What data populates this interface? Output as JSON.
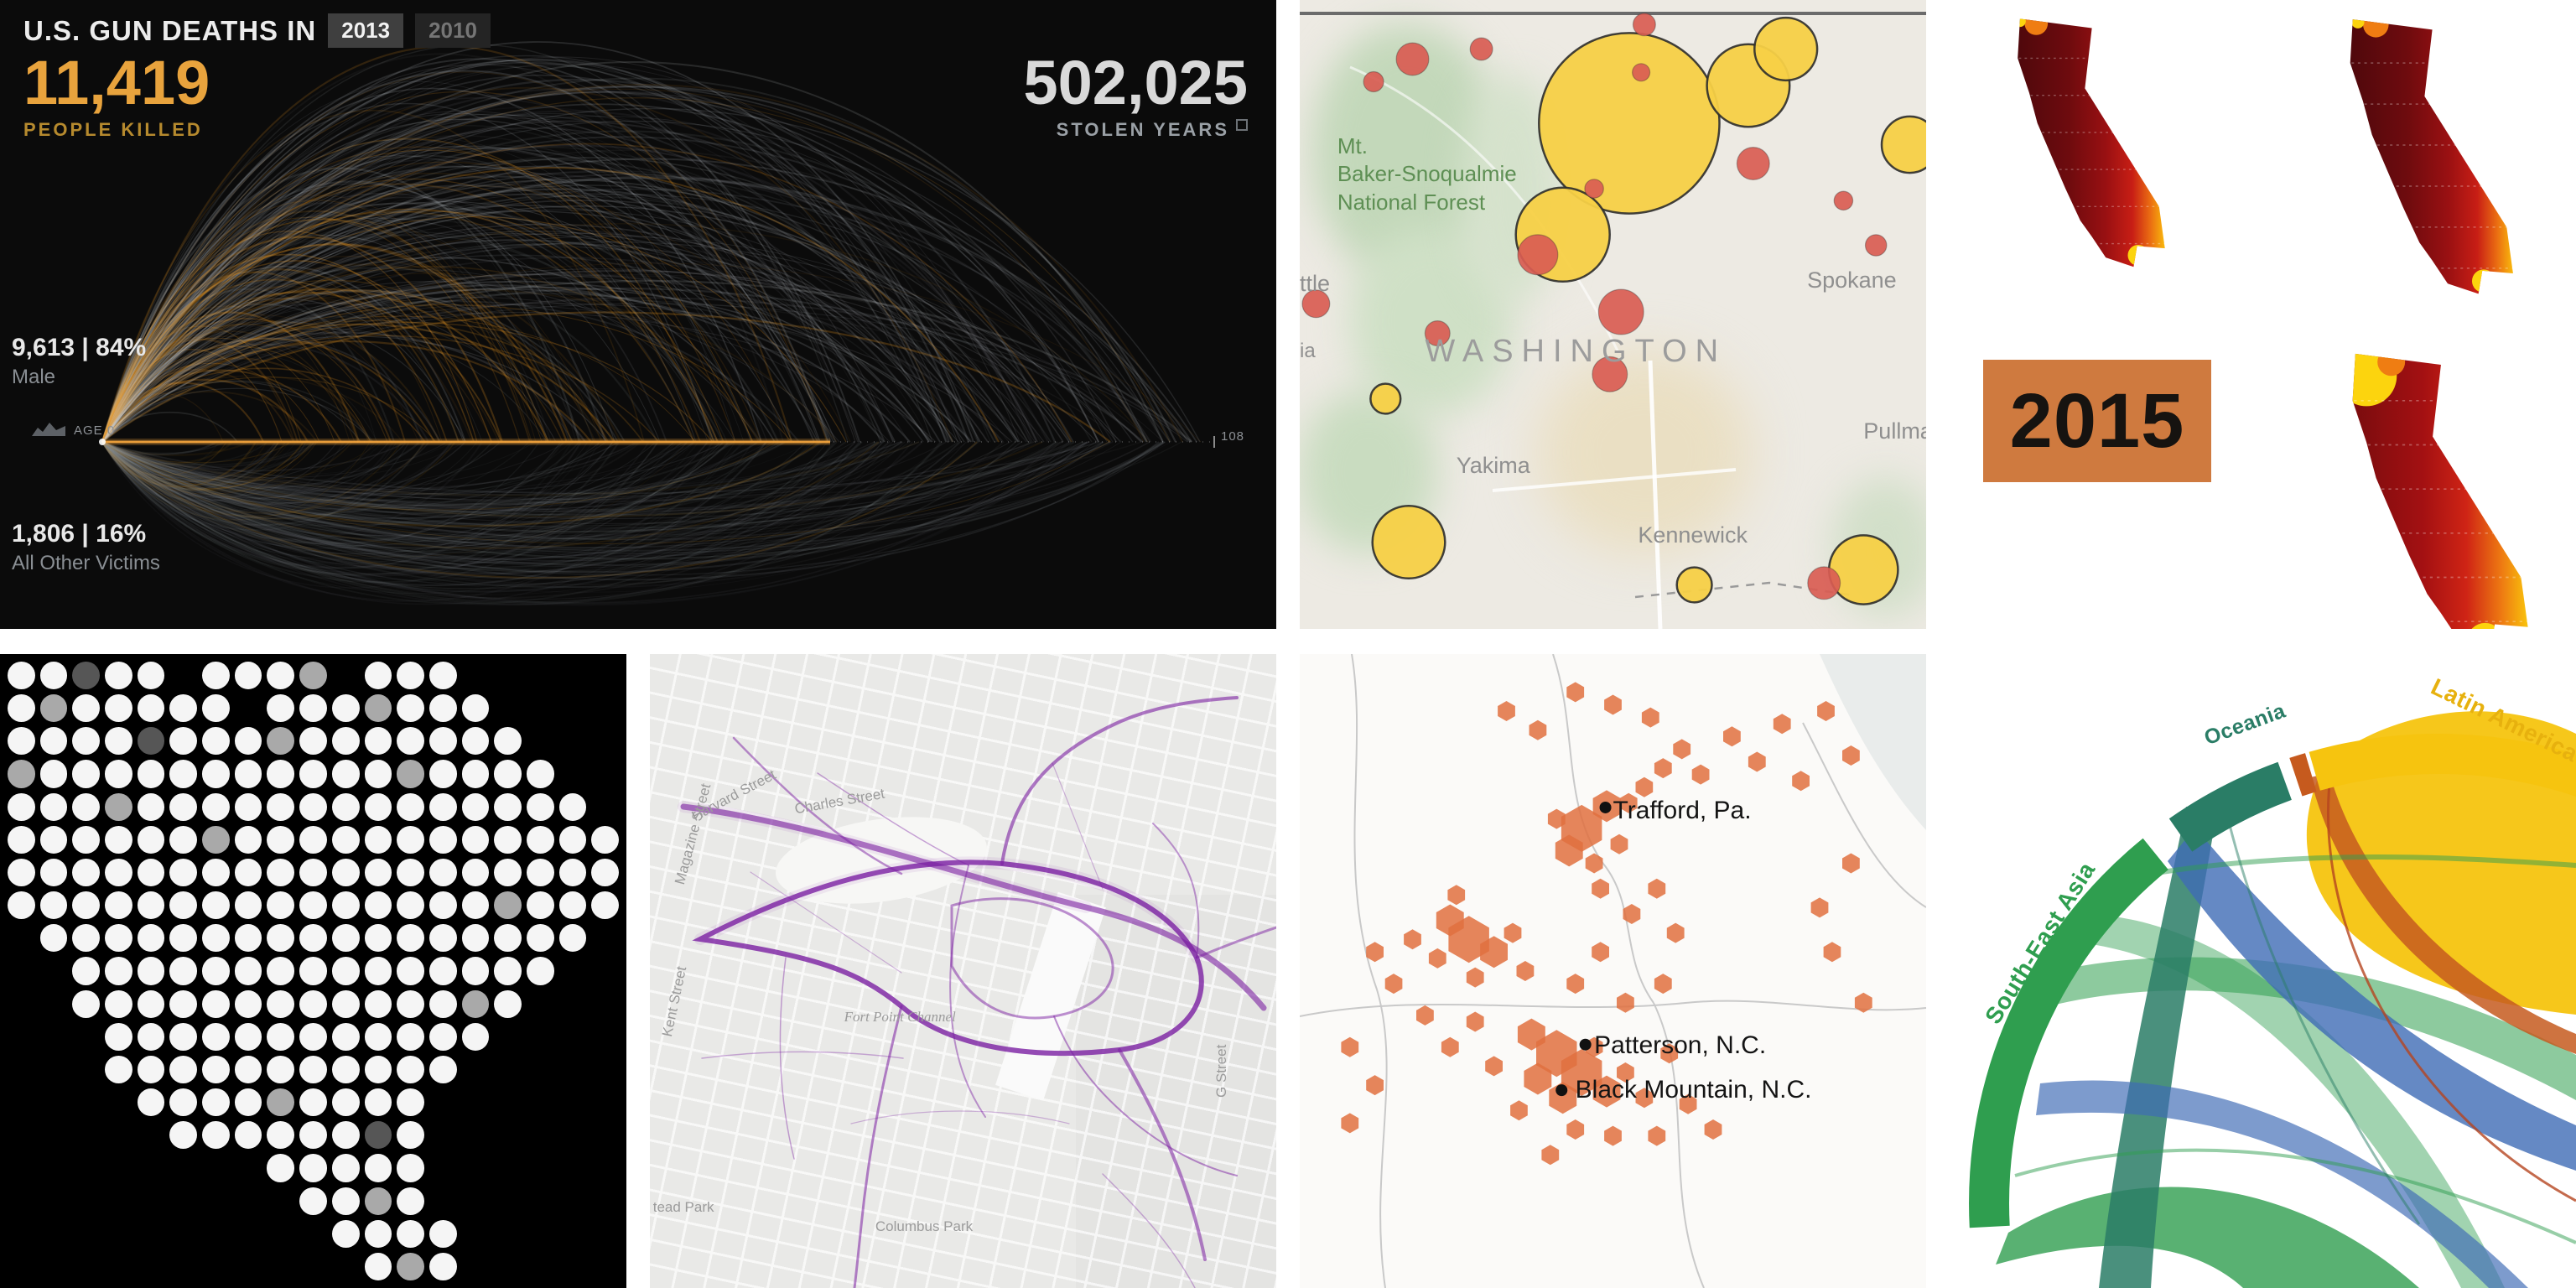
{
  "chart_data": [
    {
      "id": "gun-deaths",
      "type": "area",
      "title": "U.S. GUN DEATHS IN",
      "years": [
        "2013",
        "2010"
      ],
      "selected_year": "2013",
      "stats": {
        "people_killed": {
          "value": "11,419",
          "label": "PEOPLE KILLED"
        },
        "stolen_years": {
          "value": "502,025",
          "label": "STOLEN YEARS"
        },
        "male": {
          "value": "9,613 | 84%",
          "label": "Male"
        },
        "other": {
          "value": "1,806 | 16%",
          "label": "All Other Victims"
        }
      },
      "x_axis": {
        "label_start": "AGE 0",
        "label_end": "108",
        "range": [
          0,
          108
        ]
      },
      "colors": {
        "killed": "#e8941f",
        "stolen": "#cdd4da",
        "background": "#0b0b0b"
      }
    },
    {
      "id": "wa-bubble-map",
      "type": "scatter",
      "labels": [
        "Mt.",
        "Baker-Snoqualmie",
        "National Forest",
        "WASHINGTON",
        "Yakima",
        "Kennewick",
        "Spokane",
        "Pullman",
        "ttle",
        "ia"
      ],
      "palette": {
        "yellow": "#f7d046",
        "red": "#d95c52"
      },
      "points": [
        {
          "x": 52.6,
          "y": 19.6,
          "r": 14.4,
          "c": "y"
        },
        {
          "x": 71.6,
          "y": 13.6,
          "r": 6.6,
          "c": "y"
        },
        {
          "x": 77.6,
          "y": 7.8,
          "r": 5.0,
          "c": "y"
        },
        {
          "x": 97.4,
          "y": 23.0,
          "r": 4.5,
          "c": "y"
        },
        {
          "x": 42.0,
          "y": 37.3,
          "r": 7.5,
          "c": "y"
        },
        {
          "x": 13.7,
          "y": 63.4,
          "r": 2.4,
          "c": "y"
        },
        {
          "x": 17.4,
          "y": 86.2,
          "r": 5.8,
          "c": "y"
        },
        {
          "x": 63.0,
          "y": 93.0,
          "r": 2.8,
          "c": "y"
        },
        {
          "x": 90.0,
          "y": 90.6,
          "r": 5.5,
          "c": "y"
        },
        {
          "x": 18.0,
          "y": 9.4,
          "r": 2.6,
          "c": "r"
        },
        {
          "x": 29.0,
          "y": 7.8,
          "r": 1.8,
          "c": "r"
        },
        {
          "x": 11.8,
          "y": 13.0,
          "r": 1.6,
          "c": "r"
        },
        {
          "x": 55.0,
          "y": 3.9,
          "r": 1.8,
          "c": "r"
        },
        {
          "x": 54.5,
          "y": 11.5,
          "r": 1.4,
          "c": "r"
        },
        {
          "x": 72.4,
          "y": 26.0,
          "r": 2.6,
          "c": "r"
        },
        {
          "x": 38.0,
          "y": 40.5,
          "r": 3.2,
          "c": "r"
        },
        {
          "x": 51.3,
          "y": 49.6,
          "r": 3.6,
          "c": "r"
        },
        {
          "x": 22.0,
          "y": 53.0,
          "r": 2.0,
          "c": "r"
        },
        {
          "x": 49.5,
          "y": 59.5,
          "r": 2.8,
          "c": "r"
        },
        {
          "x": 92.0,
          "y": 39.0,
          "r": 1.7,
          "c": "r"
        },
        {
          "x": 86.8,
          "y": 31.9,
          "r": 1.5,
          "c": "r"
        },
        {
          "x": 83.7,
          "y": 92.7,
          "r": 2.6,
          "c": "r"
        },
        {
          "x": 2.6,
          "y": 48.3,
          "r": 2.2,
          "c": "r"
        },
        {
          "x": 47.0,
          "y": 30.0,
          "r": 1.5,
          "c": "r"
        }
      ]
    },
    {
      "id": "ca-drought-maps",
      "type": "heatmap",
      "year_label": "2015",
      "maps": 3,
      "legend_colors": [
        "#4f080c",
        "#991012",
        "#d7301f",
        "#ef7d12",
        "#fcd40e"
      ]
    },
    {
      "id": "us-dot-map",
      "type": "heatmap",
      "palette": {
        "1": "#f5f5f5",
        "2": "#a9a9a9",
        "3": "#565656"
      },
      "rows": [
        "1131101112011100000",
        "1211111011121110000",
        "1111311121111111000",
        "2111111111112111100",
        "1112111111111111110",
        "1111112111111111111",
        "1111111111111111111",
        "1111111111111112111",
        "0111111111111111110",
        "0011111111111111100",
        "0011111111111121000",
        "0001111111111110000",
        "0001111111111100000",
        "0000111121111000000",
        "0000011111131000000",
        "0000000011111000000",
        "0000000001121000000",
        "0000000000111100000",
        "0000000000012100000"
      ]
    },
    {
      "id": "running-routes-map",
      "type": "line",
      "route_color": "#7b1fa2",
      "streets": [
        "Harvard Street",
        "Charles Street",
        "Fort Point Channel",
        "Columbus Park",
        "Kent Street",
        "tead Park",
        "Magazine Street",
        "G Street"
      ]
    },
    {
      "id": "hexbin-map",
      "type": "scatter",
      "hex_color": "#e0703f",
      "cities": [
        "Trafford, Pa.",
        "Patterson, N.C.",
        "Black Mountain, N.C."
      ],
      "city_points": [
        {
          "x": 48.8,
          "y": 24.2
        },
        {
          "x": 45.6,
          "y": 61.6
        },
        {
          "x": 41.8,
          "y": 68.8
        }
      ],
      "points": [
        {
          "x": 33,
          "y": 9,
          "s": 1
        },
        {
          "x": 38,
          "y": 12,
          "s": 1
        },
        {
          "x": 44,
          "y": 6,
          "s": 1
        },
        {
          "x": 50,
          "y": 8,
          "s": 1
        },
        {
          "x": 56,
          "y": 10,
          "s": 1
        },
        {
          "x": 61,
          "y": 15,
          "s": 1
        },
        {
          "x": 64,
          "y": 19,
          "s": 1
        },
        {
          "x": 58,
          "y": 18,
          "s": 1
        },
        {
          "x": 55,
          "y": 21,
          "s": 1
        },
        {
          "x": 69,
          "y": 13,
          "s": 1
        },
        {
          "x": 73,
          "y": 17,
          "s": 1
        },
        {
          "x": 77,
          "y": 11,
          "s": 1
        },
        {
          "x": 80,
          "y": 20,
          "s": 1
        },
        {
          "x": 84,
          "y": 9,
          "s": 1
        },
        {
          "x": 88,
          "y": 16,
          "s": 1
        },
        {
          "x": 45,
          "y": 27.5,
          "s": 3
        },
        {
          "x": 49,
          "y": 24,
          "s": 2
        },
        {
          "x": 52.5,
          "y": 23.5,
          "s": 1
        },
        {
          "x": 43,
          "y": 31,
          "s": 2
        },
        {
          "x": 47,
          "y": 33,
          "s": 1
        },
        {
          "x": 41,
          "y": 26,
          "s": 1
        },
        {
          "x": 51,
          "y": 30,
          "s": 1
        },
        {
          "x": 48,
          "y": 37,
          "s": 1
        },
        {
          "x": 24,
          "y": 42,
          "s": 2
        },
        {
          "x": 27,
          "y": 45,
          "s": 3
        },
        {
          "x": 31,
          "y": 47,
          "s": 2
        },
        {
          "x": 22,
          "y": 48,
          "s": 1
        },
        {
          "x": 18,
          "y": 45,
          "s": 1
        },
        {
          "x": 28,
          "y": 51,
          "s": 1
        },
        {
          "x": 34,
          "y": 44,
          "s": 1
        },
        {
          "x": 36,
          "y": 50,
          "s": 1
        },
        {
          "x": 25,
          "y": 38,
          "s": 1
        },
        {
          "x": 15,
          "y": 52,
          "s": 1
        },
        {
          "x": 12,
          "y": 47,
          "s": 1
        },
        {
          "x": 20,
          "y": 57,
          "s": 1
        },
        {
          "x": 57,
          "y": 37,
          "s": 1
        },
        {
          "x": 53,
          "y": 41,
          "s": 1
        },
        {
          "x": 60,
          "y": 44,
          "s": 1
        },
        {
          "x": 48,
          "y": 47,
          "s": 1
        },
        {
          "x": 44,
          "y": 52,
          "s": 1
        },
        {
          "x": 52,
          "y": 55,
          "s": 1
        },
        {
          "x": 58,
          "y": 52,
          "s": 1
        },
        {
          "x": 37,
          "y": 60,
          "s": 2
        },
        {
          "x": 41,
          "y": 63,
          "s": 3
        },
        {
          "x": 45,
          "y": 66,
          "s": 3
        },
        {
          "x": 49,
          "y": 69,
          "s": 2
        },
        {
          "x": 42,
          "y": 70,
          "s": 2
        },
        {
          "x": 38,
          "y": 67,
          "s": 2
        },
        {
          "x": 47,
          "y": 62,
          "s": 1
        },
        {
          "x": 52,
          "y": 66,
          "s": 1
        },
        {
          "x": 55,
          "y": 70,
          "s": 1
        },
        {
          "x": 35,
          "y": 72,
          "s": 1
        },
        {
          "x": 31,
          "y": 65,
          "s": 1
        },
        {
          "x": 59,
          "y": 63,
          "s": 1
        },
        {
          "x": 44,
          "y": 75,
          "s": 1
        },
        {
          "x": 50,
          "y": 76,
          "s": 1
        },
        {
          "x": 40,
          "y": 79,
          "s": 1
        },
        {
          "x": 57,
          "y": 76,
          "s": 1
        },
        {
          "x": 62,
          "y": 71,
          "s": 1
        },
        {
          "x": 66,
          "y": 75,
          "s": 1
        },
        {
          "x": 28,
          "y": 58,
          "s": 1
        },
        {
          "x": 24,
          "y": 62,
          "s": 1
        },
        {
          "x": 83,
          "y": 40,
          "s": 1
        },
        {
          "x": 88,
          "y": 33,
          "s": 1
        },
        {
          "x": 90,
          "y": 55,
          "s": 1
        },
        {
          "x": 85,
          "y": 47,
          "s": 1
        },
        {
          "x": 12,
          "y": 68,
          "s": 1
        },
        {
          "x": 8,
          "y": 74,
          "s": 1
        },
        {
          "x": 8,
          "y": 62,
          "s": 1
        }
      ]
    },
    {
      "id": "chord-diagram",
      "type": "pie",
      "groups": [
        {
          "name": "South-East Asia",
          "color": "#2f9e4f"
        },
        {
          "name": "Oceania",
          "color": "#2a7d66"
        },
        {
          "name": "Latin America",
          "color": "#f6c40f"
        }
      ],
      "ribbon_colors": [
        "#f6c40f",
        "#2f9e4f",
        "#2a7d66",
        "#3f6bb5",
        "#c65a1e"
      ]
    }
  ]
}
